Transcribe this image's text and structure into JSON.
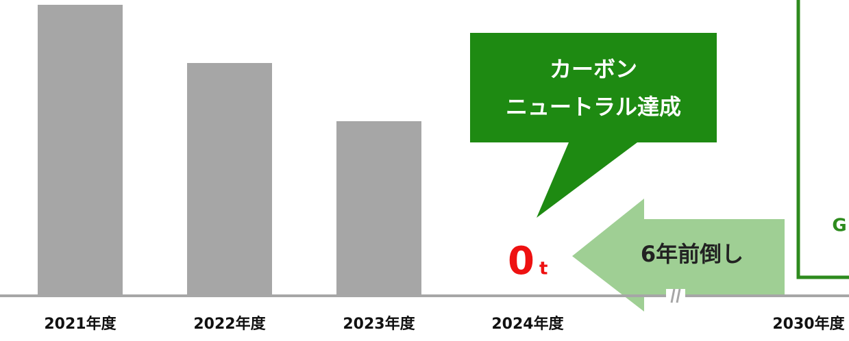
{
  "chart_data": {
    "type": "bar",
    "categories": [
      "2021年度",
      "2022年度",
      "2023年度",
      "2024年度",
      "2030年度"
    ],
    "values": [
      100,
      80,
      60,
      0,
      null
    ],
    "value_labels": [
      null,
      null,
      null,
      "0",
      null
    ],
    "value_unit": "t",
    "color": "#a6a6a6",
    "ylim": [
      0,
      100
    ],
    "callout": [
      "カーボン",
      "ニュートラル達成"
    ],
    "arrow_text": "6年前倒し",
    "panel_text": "G"
  }
}
